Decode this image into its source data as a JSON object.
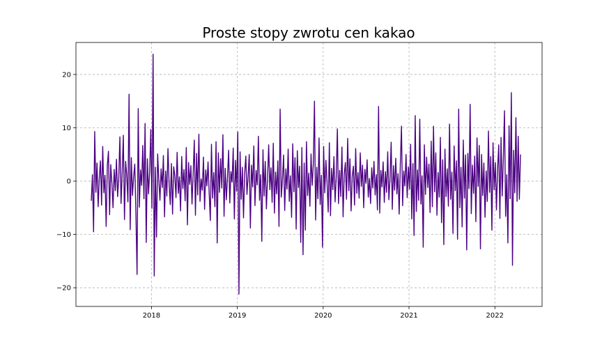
{
  "chart_data": {
    "type": "line",
    "title": "Proste stopy zwrotu cen kakao",
    "xlabel": "",
    "ylabel": "",
    "x_start": "2017-04-20",
    "x_end": "2022-04-20",
    "xlim": [
      2017.12,
      2022.55
    ],
    "ylim": [
      -23.5,
      26
    ],
    "x_ticks": [
      {
        "value": 2018,
        "label": "2018"
      },
      {
        "value": 2019,
        "label": "2019"
      },
      {
        "value": 2020,
        "label": "2020"
      },
      {
        "value": 2021,
        "label": "2021"
      },
      {
        "value": 2022,
        "label": "2022"
      }
    ],
    "y_ticks": [
      {
        "value": 20,
        "label": "20"
      },
      {
        "value": 10,
        "label": "10"
      },
      {
        "value": 0,
        "label": "0"
      },
      {
        "value": -10,
        "label": "−10"
      },
      {
        "value": -20,
        "label": "−20"
      }
    ],
    "grid": true,
    "line_color": "#4b0082",
    "series": [
      {
        "values": [
          -3.7,
          1.2,
          -9.5,
          9.3,
          -2.1,
          3.4,
          -4.8,
          0.5,
          3.8,
          -4.5,
          6.5,
          -2.2,
          1.1,
          -8.5,
          2.9,
          5.6,
          -6.3,
          3.1,
          -0.4,
          -5.0,
          2.2,
          -1.8,
          4.1,
          -2.9,
          0.6,
          8.3,
          -4.2,
          1.5,
          8.6,
          -7.2,
          3.7,
          1.1,
          -3.9,
          16.3,
          -9.1,
          4.4,
          -2.7,
          0.9,
          3.2,
          -6.1,
          -17.5,
          13.6,
          -4.9,
          2.1,
          -0.8,
          6.7,
          -3.3,
          10.8,
          -11.5,
          4.2,
          -2.4,
          1.7,
          9.7,
          -5.1,
          23.8,
          -17.8,
          2.6,
          -10.5,
          5.1,
          0.3,
          -3.6,
          2.3,
          -1.2,
          4.8,
          -6.7,
          1.9,
          -2.8,
          6.1,
          -0.5,
          -4.4,
          3.3,
          -6.2,
          2.7,
          1.0,
          -3.1,
          5.4,
          -2.3,
          0.8,
          -5.6,
          4.6,
          -1.4,
          2.2,
          -3.7,
          6.3,
          -8.2,
          3.5,
          -0.6,
          2.9,
          -4.3,
          1.3,
          7.7,
          -6.4,
          5.2,
          -2.6,
          8.8,
          -3.8,
          0.4,
          -1.7,
          4.5,
          -5.3,
          2.1,
          -0.9,
          3.6,
          -2.2,
          -7.4,
          6.9,
          -3.2,
          1.6,
          -4.8,
          7.4,
          -11.6,
          5.3,
          -2.1,
          4.2,
          -1.3,
          8.7,
          -6.6,
          2.4,
          -3.5,
          0.7,
          5.8,
          -4.1,
          1.8,
          -0.2,
          6.2,
          -7.1,
          3.9,
          -1.9,
          9.2,
          -21.2,
          5.5,
          -3.4,
          2.6,
          -6.9,
          1.4,
          4.7,
          -2.5,
          0.9,
          5.0,
          -8.8,
          3.0,
          -1.1,
          6.6,
          -4.6,
          2.0,
          -0.7,
          8.4,
          -3.6,
          1.2,
          -11.3,
          5.9,
          -2.8,
          3.7,
          -5.2,
          0.6,
          6.8,
          -1.6,
          2.5,
          -4.0,
          7.1,
          -6.0,
          1.7,
          -2.4,
          3.8,
          -8.5,
          13.5,
          -3.0,
          0.2,
          4.9,
          -5.5,
          2.3,
          -1.5,
          6.0,
          -3.8,
          1.0,
          -6.8,
          7.0,
          -2.0,
          4.4,
          -9.0,
          5.7,
          -1.2,
          2.8,
          -11.5,
          6.3,
          -13.8,
          3.4,
          -9.2,
          7.4,
          -2.7,
          1.5,
          -4.7,
          5.1,
          -0.8,
          3.2,
          15.0,
          -7.3,
          2.6,
          -3.3,
          8.1,
          -4.4,
          1.1,
          -12.4,
          6.5,
          -2.2,
          3.9,
          -0.3,
          -5.8,
          7.2,
          -6.5,
          2.4,
          -1.6,
          4.6,
          -3.9,
          0.7,
          9.8,
          -4.2,
          2.0,
          -2.9,
          6.4,
          -6.7,
          1.3,
          3.5,
          -3.4,
          8.0,
          -1.8,
          4.2,
          -5.6,
          0.9,
          2.8,
          -4.5,
          6.1,
          -2.3,
          1.6,
          -3.2,
          5.3,
          -1.0,
          3.0,
          -5.0,
          2.2,
          -0.4,
          4.0,
          -3.0,
          0.5,
          -4.2,
          2.5,
          -1.3,
          3.7,
          -2.6,
          1.2,
          -5.4,
          14.0,
          -6.0,
          2.0,
          -1.1,
          3.6,
          -4.0,
          1.8,
          -2.1,
          5.5,
          -3.5,
          0.6,
          7.3,
          -5.3,
          2.9,
          -1.7,
          4.3,
          -2.4,
          1.4,
          -6.2,
          3.1,
          10.3,
          -4.6,
          1.9,
          -0.9,
          5.0,
          -3.1,
          2.7,
          -1.5,
          6.9,
          -7.1,
          3.3,
          -10.2,
          12.3,
          -5.7,
          2.1,
          -3.6,
          11.6,
          -4.3,
          1.0,
          -12.4,
          6.8,
          -2.5,
          4.5,
          -1.2,
          3.2,
          -5.9,
          7.5,
          -4.8,
          10.3,
          -2.0,
          5.3,
          -6.4,
          1.6,
          -3.0,
          8.2,
          -7.8,
          4.0,
          -11.9,
          6.0,
          -2.9,
          2.3,
          -4.7,
          10.7,
          -3.4,
          1.7,
          -9.8,
          6.6,
          -1.8,
          3.8,
          -10.9,
          13.5,
          -5.0,
          2.6,
          -8.6,
          7.7,
          -3.2,
          4.9,
          -12.9,
          5.2,
          -1.4,
          14.4,
          -6.1,
          3.0,
          -2.3,
          4.7,
          -7.6,
          8.1,
          -1.0,
          6.7,
          -12.7,
          5.0,
          -2.7,
          3.4,
          -6.8,
          1.9,
          -3.8,
          9.4,
          -2.1,
          4.6,
          -9.2,
          7.2,
          -1.6,
          3.5,
          -5.4,
          2.4,
          6.8,
          -7.0,
          8.2,
          -2.8,
          4.1,
          13.2,
          -6.6,
          1.2,
          -11.6,
          10.4,
          -3.3,
          16.6,
          -15.8,
          5.8,
          -2.2,
          11.9,
          -3.8,
          8.4,
          -3.4,
          5.0
        ]
      }
    ]
  }
}
